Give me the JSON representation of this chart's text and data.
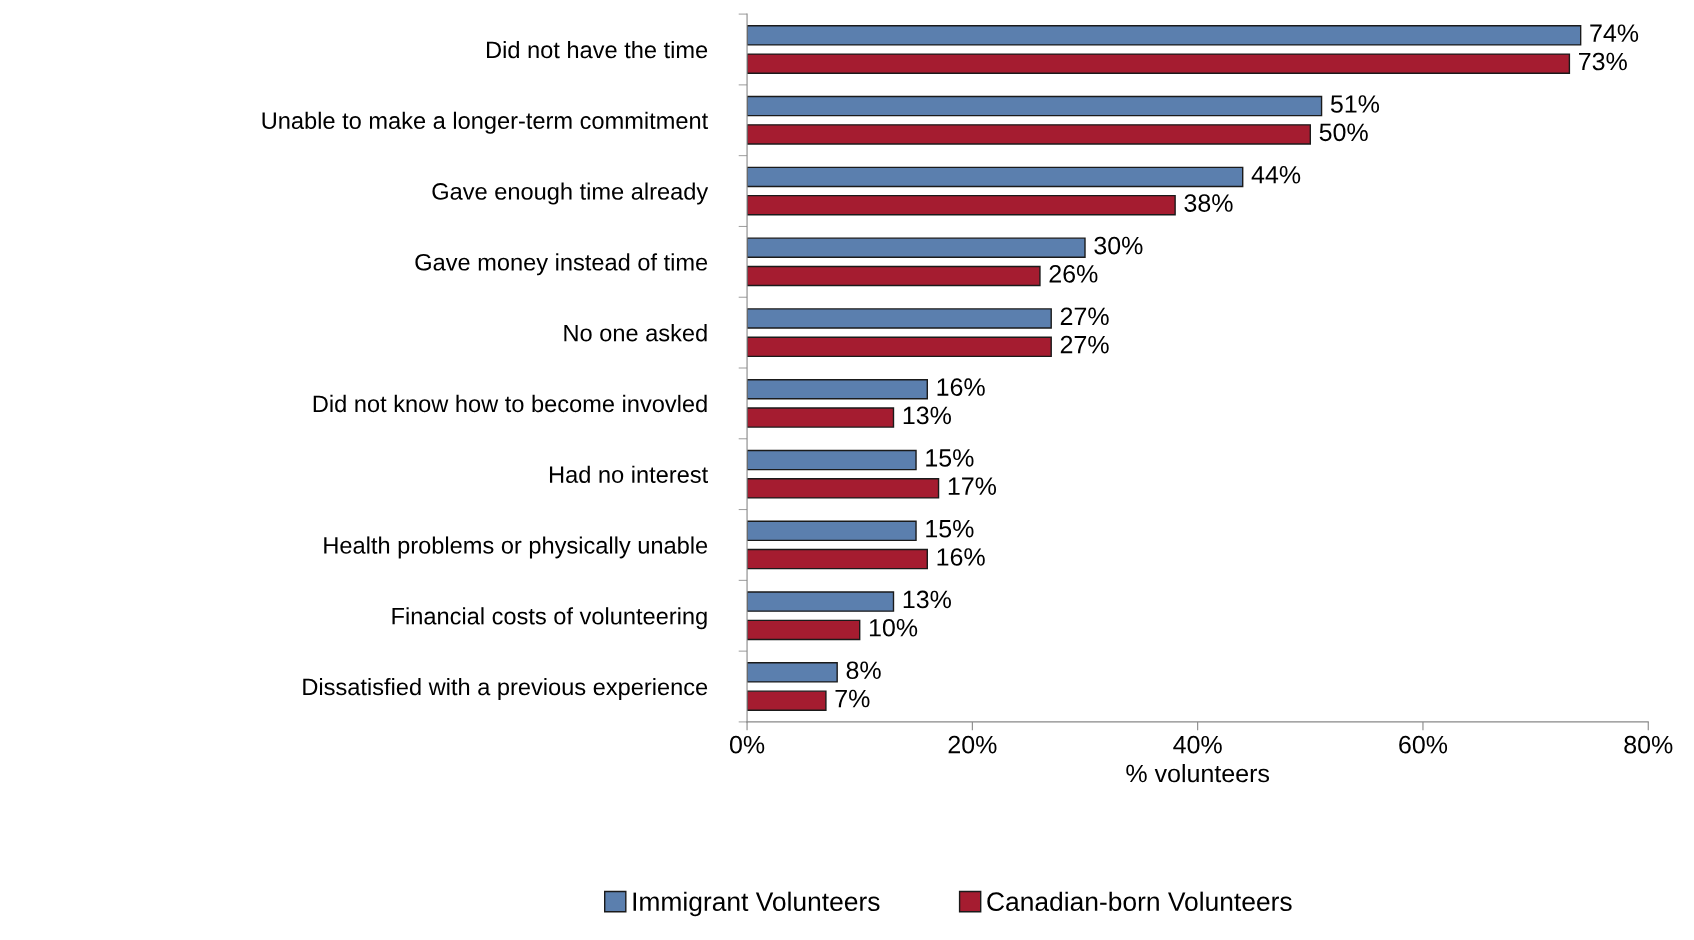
{
  "chart_data": {
    "type": "bar",
    "orientation": "horizontal",
    "xlabel": "% volunteers",
    "categories": [
      "Did not have the time",
      "Unable to make a longer-term commitment",
      "Gave enough time already",
      "Gave money instead of time",
      "No one asked",
      "Did not know how to become invovled",
      "Had no interest",
      "Health problems or physically unable",
      "Financial costs of volunteering",
      "Dissatisfied with a previous experience"
    ],
    "series": [
      {
        "name": "Immigrant Volunteers",
        "color": "#5b7fae",
        "values": [
          74,
          51,
          44,
          30,
          27,
          16,
          15,
          15,
          13,
          8
        ],
        "value_labels": [
          "74%",
          "51%",
          "44%",
          "30%",
          "27%",
          "16%",
          "15%",
          "15%",
          "13%",
          "8%"
        ]
      },
      {
        "name": "Canadian-born Volunteers",
        "color": "#a51c30",
        "values": [
          73,
          50,
          38,
          26,
          27,
          13,
          17,
          16,
          10,
          7
        ],
        "value_labels": [
          "73%",
          "50%",
          "38%",
          "26%",
          "27%",
          "13%",
          "17%",
          "16%",
          "10%",
          "7%"
        ]
      }
    ],
    "xlim": [
      0,
      80
    ],
    "xticks": [
      {
        "value": 0,
        "label": "0%"
      },
      {
        "value": 20,
        "label": "20%"
      },
      {
        "value": 40,
        "label": "40%"
      },
      {
        "value": 60,
        "label": "60%"
      },
      {
        "value": 80,
        "label": "80%"
      }
    ],
    "grid": false,
    "legend": "bottom"
  }
}
